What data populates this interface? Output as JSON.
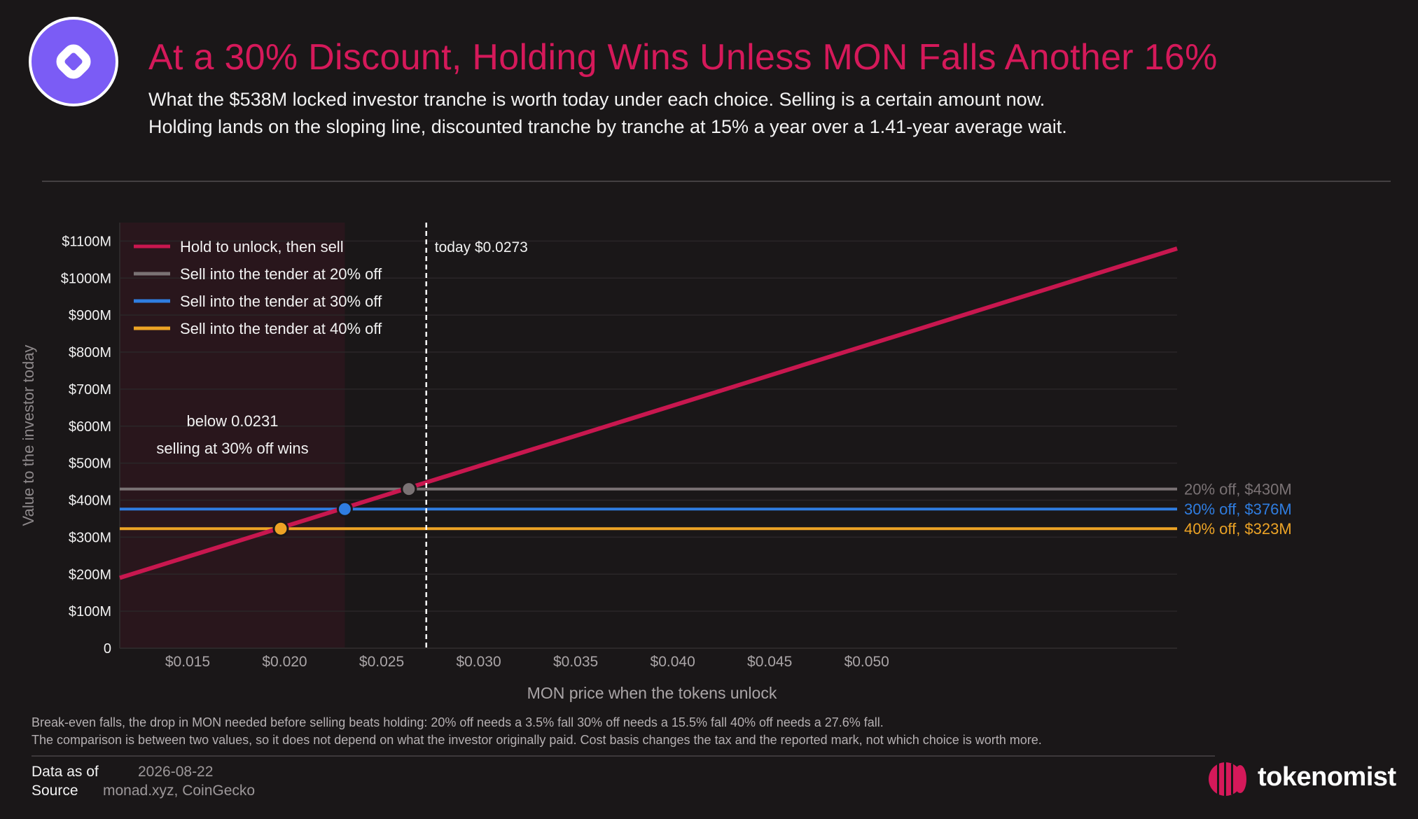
{
  "header": {
    "title": "At a 30% Discount, Holding Wins Unless MON Falls Another 16%",
    "subtitle": "What the $538M locked investor tranche is worth today under each choice. Selling is a certain amount now. Holding lands on the sloping line, discounted tranche by tranche at 15% a year over a 1.41-year average wait."
  },
  "chart_data": {
    "type": "line",
    "xlabel": "MON price when the tokens unlock",
    "ylabel": "Value to the investor today",
    "x_ticks": [
      "$0.015",
      "$0.020",
      "$0.025",
      "$0.030",
      "$0.035",
      "$0.040",
      "$0.045",
      "$0.050"
    ],
    "x_tick_values": [
      0.015,
      0.02,
      0.025,
      0.03,
      0.035,
      0.04,
      0.045,
      0.05
    ],
    "y_ticks": [
      "0",
      "$100M",
      "$200M",
      "$300M",
      "$400M",
      "$500M",
      "$600M",
      "$700M",
      "$800M",
      "$900M",
      "$1000M",
      "$1100M"
    ],
    "y_tick_values": [
      0,
      100,
      200,
      300,
      400,
      500,
      600,
      700,
      800,
      900,
      1000,
      1100
    ],
    "xlim": [
      0.0115,
      0.066
    ],
    "ylim": [
      0,
      1150
    ],
    "grid": true,
    "legend_position": "top-left",
    "series": [
      {
        "name": "Hold to unlock, then sell",
        "color": "#c8174f",
        "x": [
          0.0115,
          0.066
        ],
        "y": [
          190,
          1080
        ]
      },
      {
        "name": "Sell into the tender at 20% off",
        "color": "#7a7274",
        "x": [
          0.0115,
          0.066
        ],
        "y": [
          430,
          430
        ],
        "end_label": "20% off, $430M"
      },
      {
        "name": "Sell into the tender at 30% off",
        "color": "#2f7de1",
        "x": [
          0.0115,
          0.066
        ],
        "y": [
          376,
          376
        ],
        "end_label": "30% off, $376M"
      },
      {
        "name": "Sell into the tender at 40% off",
        "color": "#eda325",
        "x": [
          0.0115,
          0.066
        ],
        "y": [
          323,
          323
        ],
        "end_label": "40% off, $323M"
      }
    ],
    "markers": [
      {
        "x": 0.0264,
        "y": 430,
        "color": "#7a7274"
      },
      {
        "x": 0.0231,
        "y": 376,
        "color": "#2f7de1"
      },
      {
        "x": 0.0198,
        "y": 323,
        "color": "#eda325"
      }
    ],
    "shaded_region": {
      "x": [
        0.0115,
        0.0231
      ],
      "color": "#c8174f"
    },
    "today_line": {
      "x": 0.0273,
      "label": "today $0.0273"
    },
    "annotation": [
      "below 0.0231",
      "selling at 30% off wins"
    ]
  },
  "notes": {
    "line1": "Break-even falls, the drop in MON needed before selling beats holding: 20% off needs a 3.5% fall   30% off needs a 15.5% fall   40% off needs a 27.6% fall.",
    "line2": "The comparison is between two values, so it does not depend on what the investor originally paid. Cost basis changes the tax and the reported mark, not which choice is worth more."
  },
  "meta": {
    "date_label": "Data as of",
    "date_value": "2026-08-22",
    "source_label": "Source",
    "source_value": "monad.xyz, CoinGecko"
  },
  "brand": {
    "name": "tokenomist",
    "accent": "#d5195a"
  }
}
